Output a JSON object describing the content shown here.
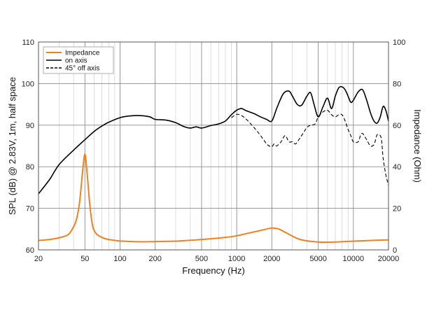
{
  "chart_data": {
    "type": "line",
    "title": "",
    "xlabel": "Frequency (Hz)",
    "ylabel_left": "SPL (dB) @ 2.83V, 1m, half space",
    "ylabel_right": "Impedance (Ohm)",
    "xscale": "log",
    "xlim": [
      20,
      20000
    ],
    "ylim_left": [
      60,
      110
    ],
    "ylim_right": [
      0,
      100
    ],
    "grid": true,
    "legend_position": "top-left",
    "x_tick_labels": [
      "20",
      "50",
      "100",
      "200",
      "500",
      "1000",
      "2000",
      "5000",
      "10000",
      "20000"
    ],
    "x_tick_values": [
      20,
      50,
      100,
      200,
      500,
      1000,
      2000,
      5000,
      10000,
      20000
    ],
    "y_left_ticks": [
      60,
      70,
      80,
      90,
      100,
      110
    ],
    "y_right_ticks": [
      0,
      20,
      40,
      60,
      80,
      100
    ],
    "series": [
      {
        "name": "Impedance",
        "axis": "right",
        "color": "#f0821e",
        "style": "solid",
        "x": [
          20,
          25,
          30,
          35,
          38,
          42,
          45,
          48,
          50,
          52,
          55,
          58,
          62,
          70,
          80,
          100,
          150,
          200,
          300,
          500,
          800,
          1000,
          1200,
          1500,
          1800,
          2000,
          2300,
          2700,
          3500,
          5000,
          7000,
          10000,
          15000,
          20000
        ],
        "values": [
          4.5,
          5,
          5.8,
          7,
          9,
          14,
          23,
          39,
          46,
          38,
          22,
          12,
          8,
          6,
          5,
          4.3,
          3.9,
          4,
          4.2,
          5,
          6,
          6.8,
          7.8,
          9,
          10,
          10.5,
          10,
          8,
          5,
          3.8,
          3.8,
          4.2,
          4.6,
          4.8
        ]
      },
      {
        "name": "on axis",
        "axis": "left",
        "color": "#000000",
        "style": "solid",
        "x": [
          20,
          25,
          30,
          40,
          50,
          60,
          70,
          80,
          100,
          120,
          150,
          180,
          200,
          250,
          300,
          350,
          400,
          450,
          500,
          600,
          700,
          800,
          900,
          1000,
          1100,
          1200,
          1400,
          1600,
          1800,
          2000,
          2200,
          2500,
          2800,
          3000,
          3300,
          3600,
          4000,
          4300,
          4600,
          5000,
          5500,
          6000,
          6500,
          7000,
          7500,
          8000,
          8500,
          9000,
          9500,
          10000,
          11000,
          12000,
          13000,
          14000,
          15000,
          16000,
          17000,
          18000,
          19000,
          20000
        ],
        "values": [
          73.5,
          77,
          80.5,
          84,
          86.5,
          88.5,
          89.8,
          90.7,
          91.8,
          92.2,
          92.3,
          92,
          91.4,
          91.2,
          90.6,
          89.7,
          89.3,
          89.6,
          89.3,
          89.9,
          90.3,
          91,
          92.5,
          93.6,
          94,
          93.5,
          92.8,
          92,
          91.4,
          91,
          94,
          97.5,
          98.2,
          97,
          95,
          94.8,
          97,
          97.8,
          95,
          92,
          94.5,
          96.5,
          94,
          97,
          99,
          99.2,
          98.5,
          97,
          95.5,
          96,
          98,
          98.5,
          96,
          93,
          91,
          90.5,
          92,
          94.5,
          93.5,
          91
        ]
      },
      {
        "name": "45° off axis",
        "axis": "left",
        "color": "#000000",
        "style": "dashed",
        "x": [
          900,
          1000,
          1100,
          1200,
          1300,
          1400,
          1500,
          1600,
          1700,
          1800,
          1900,
          2000,
          2100,
          2200,
          2400,
          2600,
          2800,
          3000,
          3200,
          3500,
          3800,
          4000,
          4300,
          4700,
          5000,
          5500,
          6000,
          6500,
          7000,
          7500,
          8000,
          8500,
          9000,
          9500,
          10000,
          11000,
          11500,
          12000,
          13000,
          14000,
          15000,
          15500,
          16000,
          17000,
          17500,
          18000,
          19000,
          20000
        ],
        "values": [
          91.8,
          92.6,
          92.3,
          91.5,
          90.5,
          89.5,
          88.5,
          87.5,
          86.5,
          85.5,
          85,
          84.8,
          85.5,
          85,
          86,
          87.5,
          86,
          86,
          85.5,
          87,
          88.5,
          89.5,
          90,
          90.3,
          92,
          93.2,
          93.6,
          92.5,
          92,
          92.5,
          92.5,
          91,
          89,
          87.5,
          86,
          86,
          87.5,
          88,
          86.5,
          85,
          85.3,
          86.5,
          87.7,
          87.5,
          86,
          82,
          78,
          75.5
        ]
      }
    ]
  }
}
